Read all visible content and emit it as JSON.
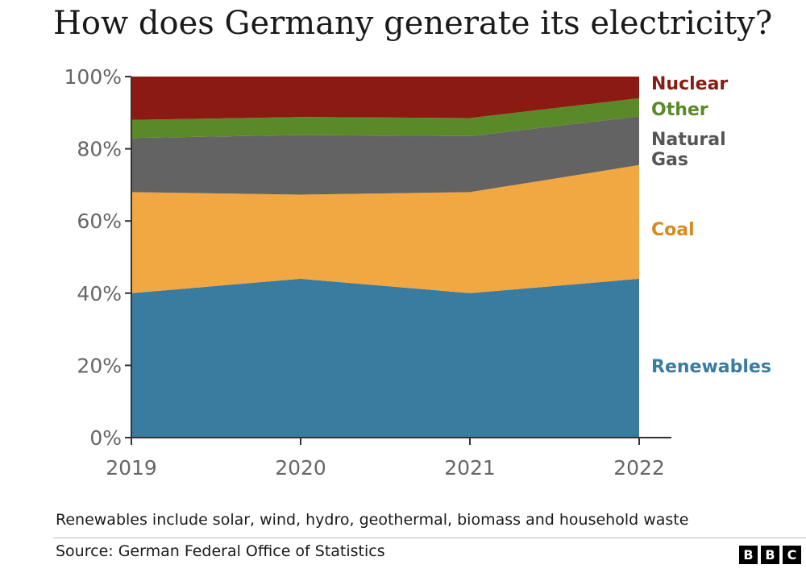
{
  "chart_data": {
    "type": "area",
    "stacked": true,
    "title": "How does Germany generate its electricity?",
    "x": [
      "2019",
      "2020",
      "2021",
      "2022"
    ],
    "ylim": [
      0,
      100
    ],
    "y_ticks": [
      "0%",
      "20%",
      "40%",
      "60%",
      "80%",
      "100%"
    ],
    "y_tick_values": [
      0,
      20,
      40,
      60,
      80,
      100
    ],
    "grid": false,
    "legend": "inline-right",
    "series": [
      {
        "name": "Renewables",
        "color": "#3a7ca0",
        "values": [
          40,
          44,
          40,
          44
        ]
      },
      {
        "name": "Coal",
        "color": "#f1a742",
        "values": [
          28,
          23.3,
          28,
          31.5
        ]
      },
      {
        "name": "Natural Gas",
        "color": "#636363",
        "values": [
          15,
          16.5,
          15.5,
          13.5
        ]
      },
      {
        "name": "Other",
        "color": "#5a8a28",
        "values": [
          5,
          5,
          5,
          5
        ]
      },
      {
        "name": "Nuclear",
        "color": "#8b1a12",
        "values": [
          12,
          11.2,
          11.5,
          6
        ]
      }
    ],
    "series_labels": [
      {
        "series": "Nuclear",
        "lines": [
          "Nuclear"
        ]
      },
      {
        "series": "Other",
        "lines": [
          "Other"
        ]
      },
      {
        "series": "Natural Gas",
        "lines": [
          "Natural",
          "Gas"
        ]
      },
      {
        "series": "Coal",
        "lines": [
          "Coal"
        ]
      },
      {
        "series": "Renewables",
        "lines": [
          "Renewables"
        ]
      }
    ]
  },
  "footnote": "Renewables include solar, wind, hydro, geothermal, biomass and household waste",
  "source": "Source: German Federal Office of Statistics",
  "logo": [
    "B",
    "B",
    "C"
  ],
  "colors": {
    "label_natural_gas": "#555555"
  }
}
